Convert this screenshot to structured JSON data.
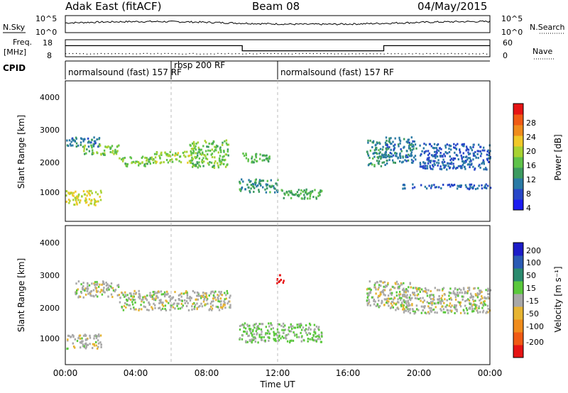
{
  "header": {
    "station": "Adak East (fitACF)",
    "beam": "Beam 08",
    "date": "04/May/2015"
  },
  "panels": {
    "nsky_label": "N.Sky",
    "nsearch_label": "N.Search",
    "nsky_ticks": [
      "10^5",
      "10^0"
    ],
    "nsearch_ticks": [
      "10^5",
      "10^0"
    ],
    "freq_label": "Freq.",
    "freq_unit": "[MHz]",
    "freq_ticks": [
      "18",
      "8"
    ],
    "nave_label": "Nave",
    "nave_ticks": [
      "60",
      "0"
    ],
    "cpid_label": "CPID",
    "cpid_segments": [
      {
        "text": "normalsound (fast) 157 RF",
        "start_h": 0
      },
      {
        "text": "rbsp 200 RF",
        "start_h": 6
      },
      {
        "text": "normalsound (fast) 157 RF",
        "start_h": 12
      }
    ]
  },
  "axes": {
    "x_ticks": [
      "00:00",
      "04:00",
      "08:00",
      "12:00",
      "16:00",
      "20:00",
      "00:00"
    ],
    "x_label": "Time UT",
    "y_label": "Slant Range [km]",
    "y_ticks": [
      "4000",
      "3000",
      "2000",
      "1000"
    ]
  },
  "colorbars": {
    "power": {
      "label": "Power [dB]",
      "ticks": [
        "28",
        "24",
        "20",
        "16",
        "12",
        "8",
        "4"
      ],
      "colors": [
        "#1c1cf0",
        "#2847c8",
        "#2a7aa5",
        "#3c9a60",
        "#5fc24a",
        "#a8d232",
        "#f0c828",
        "#f08c1c",
        "#f05a14",
        "#e61414"
      ]
    },
    "velocity": {
      "label": "Velocity [m s⁻¹]",
      "ticks": [
        "200",
        "100",
        "50",
        "15",
        "-15",
        "-50",
        "-100",
        "-200"
      ],
      "colors": [
        "#1c1cc8",
        "#2a5ab4",
        "#2a8a6e",
        "#5ac83c",
        "#a8a8a8",
        "#e6b432",
        "#f08c1c",
        "#f05a14",
        "#e61414"
      ]
    }
  },
  "chart_data": [
    {
      "type": "line",
      "title": "N.Sky / N.Search",
      "x_range_hours": [
        0,
        24
      ],
      "y_scale": "log",
      "ylim": [
        1,
        100000
      ]
    },
    {
      "type": "line",
      "title": "Freq. / Nave",
      "x_range_hours": [
        0,
        24
      ],
      "series": [
        {
          "name": "Freq. [MHz]",
          "x": [
            0,
            10,
            10,
            18,
            18,
            24
          ],
          "values": [
            14.5,
            14.5,
            11.5,
            11.5,
            14.5,
            14.5
          ]
        },
        {
          "name": "Nave",
          "x": [
            0,
            24
          ],
          "values": [
            10,
            10
          ]
        }
      ],
      "ylim": [
        8,
        18
      ]
    },
    {
      "type": "heatmap",
      "title": "Power [dB]",
      "x_range_hours": [
        0,
        24
      ],
      "ylim_km": [
        180,
        4500
      ],
      "color_range": [
        0,
        30
      ],
      "bands": [
        {
          "t0": 0.0,
          "t1": 2.0,
          "r0": 700,
          "r1": 1150,
          "value": 18
        },
        {
          "t0": 0.0,
          "t1": 2.0,
          "r0": 2500,
          "r1": 2800,
          "value": 8
        },
        {
          "t0": 1.0,
          "t1": 3.0,
          "r0": 2250,
          "r1": 2550,
          "value": 14
        },
        {
          "t0": 3.0,
          "t1": 5.0,
          "r0": 1900,
          "r1": 2200,
          "value": 14
        },
        {
          "t0": 5.0,
          "t1": 7.0,
          "r0": 2000,
          "r1": 2350,
          "value": 16
        },
        {
          "t0": 7.0,
          "t1": 9.2,
          "r0": 1850,
          "r1": 2700,
          "value": 14
        },
        {
          "t0": 9.8,
          "t1": 12.0,
          "r0": 1100,
          "r1": 1500,
          "value": 10
        },
        {
          "t0": 10.0,
          "t1": 11.5,
          "r0": 2000,
          "r1": 2300,
          "value": 12
        },
        {
          "t0": 12.0,
          "t1": 14.5,
          "r0": 900,
          "r1": 1200,
          "value": 12
        },
        {
          "t0": 17.0,
          "t1": 18.2,
          "r0": 1900,
          "r1": 2700,
          "value": 10
        },
        {
          "t0": 18.0,
          "t1": 19.8,
          "r0": 2000,
          "r1": 2800,
          "value": 8
        },
        {
          "t0": 19.0,
          "t1": 24.0,
          "r0": 1200,
          "r1": 1350,
          "value": 6
        },
        {
          "t0": 20.0,
          "t1": 24.0,
          "r0": 1800,
          "r1": 2600,
          "value": 6
        }
      ]
    },
    {
      "type": "heatmap",
      "title": "Velocity [m s-1]",
      "x_range_hours": [
        0,
        24
      ],
      "ylim_km": [
        180,
        4500
      ],
      "color_range": [
        -200,
        200
      ],
      "bands": [
        {
          "t0": 0.0,
          "t1": 2.0,
          "r0": 700,
          "r1": 1150,
          "value": 0
        },
        {
          "t0": 0.5,
          "t1": 3.0,
          "r0": 2300,
          "r1": 2800,
          "value": 0
        },
        {
          "t0": 3.0,
          "t1": 9.3,
          "r0": 1900,
          "r1": 2500,
          "value": 0
        },
        {
          "t0": 9.8,
          "t1": 14.5,
          "r0": 900,
          "r1": 1500,
          "value": 30
        },
        {
          "t0": 11.9,
          "t1": 12.3,
          "r0": 2700,
          "r1": 3000,
          "value": -250
        },
        {
          "t0": 17.0,
          "t1": 19.5,
          "r0": 1900,
          "r1": 2800,
          "value": 0
        },
        {
          "t0": 19.0,
          "t1": 24.0,
          "r0": 1800,
          "r1": 2600,
          "value": 0
        }
      ]
    }
  ]
}
